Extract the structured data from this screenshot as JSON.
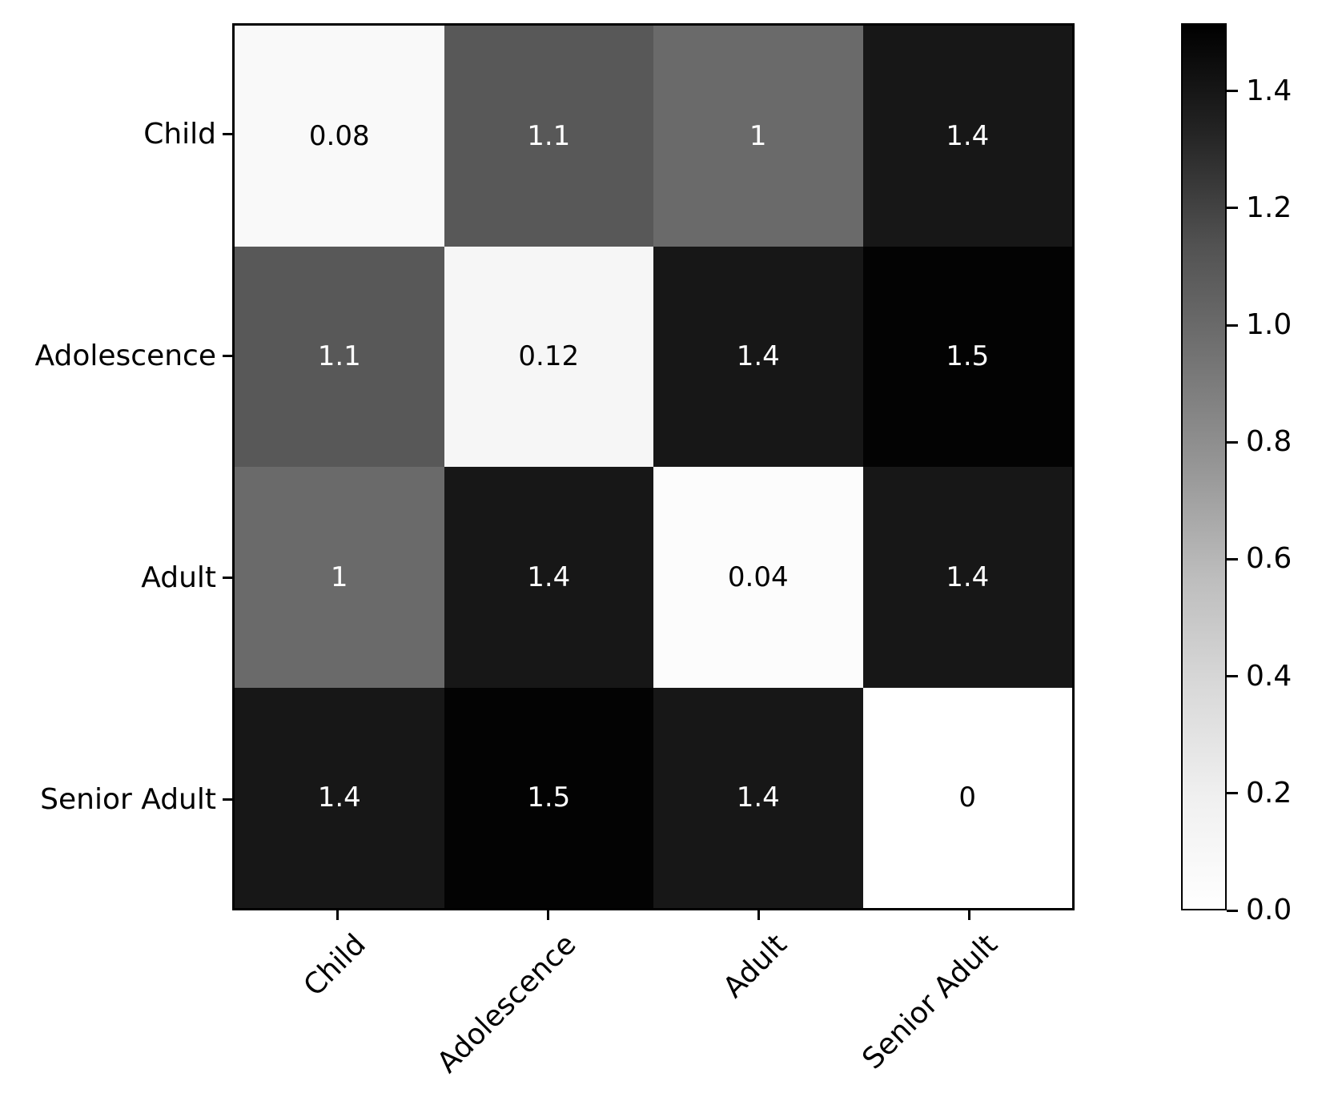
{
  "chart_data": {
    "type": "heatmap",
    "title": "",
    "xlabel": "",
    "ylabel": "",
    "categories": [
      "Child",
      "Adolescence",
      "Adult",
      "Senior Adult"
    ],
    "matrix": [
      [
        0.08,
        1.1,
        1.0,
        1.4
      ],
      [
        1.1,
        0.12,
        1.4,
        1.5
      ],
      [
        1.0,
        1.4,
        0.04,
        1.4
      ],
      [
        1.4,
        1.5,
        1.4,
        0.0
      ]
    ],
    "annotations": [
      [
        "0.08",
        "1.1",
        "1",
        "1.4"
      ],
      [
        "1.1",
        "0.12",
        "1.4",
        "1.5"
      ],
      [
        "1",
        "1.4",
        "0.04",
        "1.4"
      ],
      [
        "1.4",
        "1.5",
        "1.4",
        "0"
      ]
    ],
    "colormap": {
      "name": "Greys",
      "stops": [
        "#ffffff",
        "#f0f0f0",
        "#d9d9d9",
        "#bdbdbd",
        "#969696",
        "#737373",
        "#525252",
        "#252525",
        "#000000"
      ]
    },
    "colorbar": {
      "vmin": 0,
      "vmax": 1.516,
      "tick_labels": [
        "1.4",
        "1.2",
        "1.0",
        "0.8",
        "0.6",
        "0.4",
        "0.2",
        "0.0"
      ],
      "tick_values": [
        1.4,
        1.2,
        1.0,
        0.8,
        0.6,
        0.4,
        0.2,
        0.0
      ],
      "position": "right"
    },
    "annotation_text_colors": {
      "light_cell": "#000000",
      "dark_cell": "#ffffff"
    },
    "grid": false,
    "legend": false
  }
}
